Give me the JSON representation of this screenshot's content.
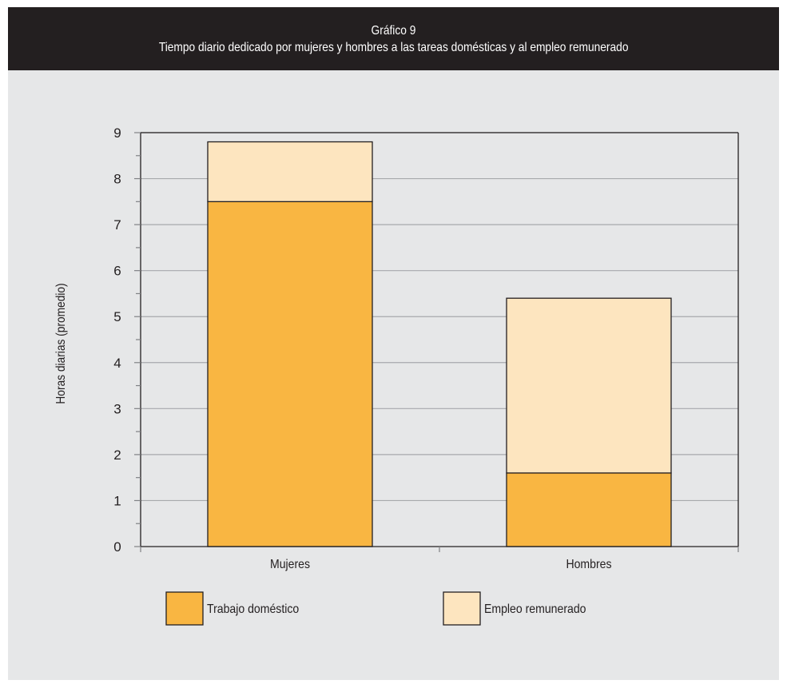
{
  "header": {
    "title": "Gráfico 9",
    "subtitle": "Tiempo diario dedicado por mujeres y hombres a las tareas domésticas y al empleo remunerado"
  },
  "colors": {
    "panel": "#e6e7e8",
    "header_bg": "#231f20",
    "trabajo_domestico": "#f9b642",
    "empleo_remunerado": "#fde5bf",
    "gridline": "#a7a9ac",
    "axis": "#231f20"
  },
  "chart_data": {
    "type": "bar",
    "stacked": true,
    "categories": [
      "Mujeres",
      "Hombres"
    ],
    "series": [
      {
        "name": "Trabajo doméstico",
        "values": [
          7.5,
          1.6
        ]
      },
      {
        "name": "Empleo remunerado",
        "values": [
          1.3,
          3.8
        ]
      }
    ],
    "ylabel": "Horas diarias (promedio)",
    "xlabel": "",
    "ylim": [
      0,
      9
    ],
    "yticks": [
      "0",
      "1",
      "2",
      "3",
      "4",
      "5",
      "6",
      "7",
      "8",
      "9"
    ],
    "grid": true,
    "legend": "bottom"
  }
}
